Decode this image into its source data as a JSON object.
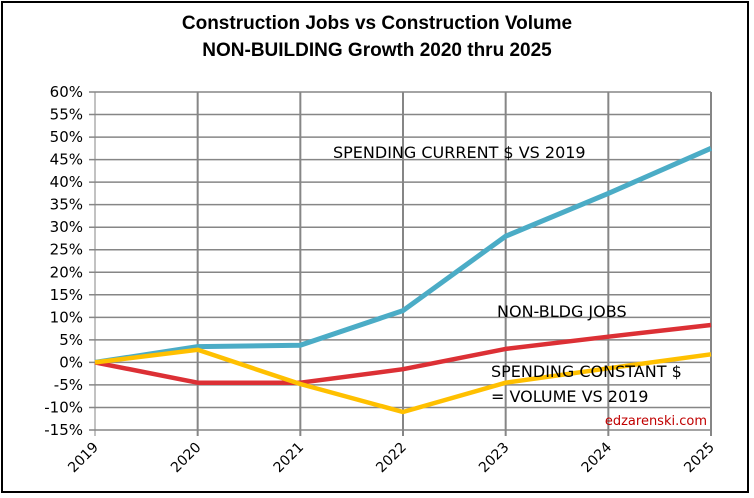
{
  "chart_data": {
    "type": "line",
    "title": "Construction Jobs vs Construction Volume",
    "subtitle": "NON-BUILDING Growth 2020 thru 2025",
    "xlabel": "",
    "ylabel": "",
    "categories": [
      "2019",
      "2020",
      "2021",
      "2022",
      "2023",
      "2024",
      "2025"
    ],
    "ylim": [
      -15,
      60
    ],
    "ytick_step": 5,
    "yticks": [
      "60%",
      "55%",
      "50%",
      "45%",
      "40%",
      "35%",
      "30%",
      "25%",
      "20%",
      "15%",
      "10%",
      "5%",
      "0%",
      "-5%",
      "-10%",
      "-15%"
    ],
    "grid": true,
    "series": [
      {
        "name": "SPENDING CURRENT $ VS 2019",
        "color": "#4bacc6",
        "values": [
          0,
          3.5,
          3.8,
          11.5,
          28.0,
          37.5,
          47.5
        ]
      },
      {
        "name": "NON-BLDG JOBS",
        "color": "#dc3035",
        "values": [
          0,
          -4.5,
          -4.5,
          -1.5,
          3.0,
          5.7,
          8.3
        ]
      },
      {
        "name": "SPENDING CONSTANT $ = VOLUME VS 2019",
        "color": "#ffc000",
        "values": [
          0,
          2.8,
          -4.8,
          -11.0,
          -4.5,
          -1.3,
          1.8
        ]
      }
    ],
    "annotations": {
      "blue_label": "SPENDING CURRENT $ VS 2019",
      "red_label": "NON-BLDG JOBS",
      "yellow_label_line1": "SPENDING CONSTANT $",
      "yellow_label_line2": "= VOLUME  VS 2019"
    },
    "watermark": "edzarenski.com"
  }
}
